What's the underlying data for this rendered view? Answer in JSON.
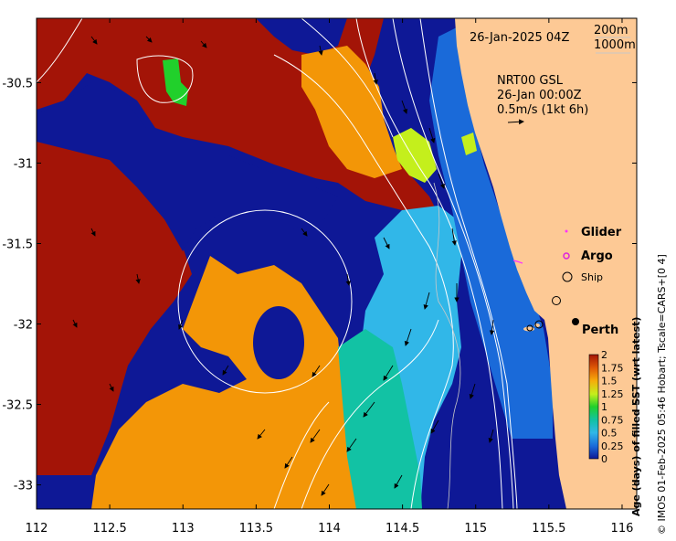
{
  "map": {
    "date_label": "26-Jan-2025 04Z",
    "depth_labels": [
      "200m",
      "1000m"
    ],
    "current_source": "NRT00 GSL",
    "current_time": "26-Jan 00:00Z",
    "current_scale": "0.5m/s (1kt 6h)",
    "x_ticks": [
      "112",
      "112.5",
      "113",
      "113.5",
      "114",
      "114.5",
      "115",
      "115.5",
      "116"
    ],
    "y_ticks": [
      "-30.5",
      "-31",
      "-31.5",
      "-32",
      "-32.5",
      "-33"
    ],
    "x_range": [
      112,
      116.1
    ],
    "y_range": [
      -33.15,
      -30.1
    ],
    "legend": {
      "glider": "Glider",
      "argo": "Argo",
      "ship": "Ship"
    },
    "city": "Perth",
    "colorbar": {
      "label": "Age (days) of filled SST (wrt latest)",
      "ticks": [
        "2",
        "1.75",
        "1.5",
        "1.25",
        "1",
        "0.75",
        "0.5",
        "0.25",
        "0"
      ],
      "range": [
        0,
        2
      ]
    },
    "credit": "© IMOS 01-Feb-2025 05:46 Hobart; Tscale=CARS+[0 4]"
  },
  "colors": {
    "land": "#fdc995",
    "navy": "#0e1896",
    "dark_red": "#a31407",
    "orange": "#f39607",
    "light_orange": "#f7ab0a",
    "cyan": "#31b7e8",
    "mid_blue": "#1a6ad9",
    "teal": "#12c2a4",
    "yellow_green": "#c4ef1c",
    "green": "#21d02b",
    "glider": "#ff33ff",
    "argo": "#dd22dd"
  }
}
